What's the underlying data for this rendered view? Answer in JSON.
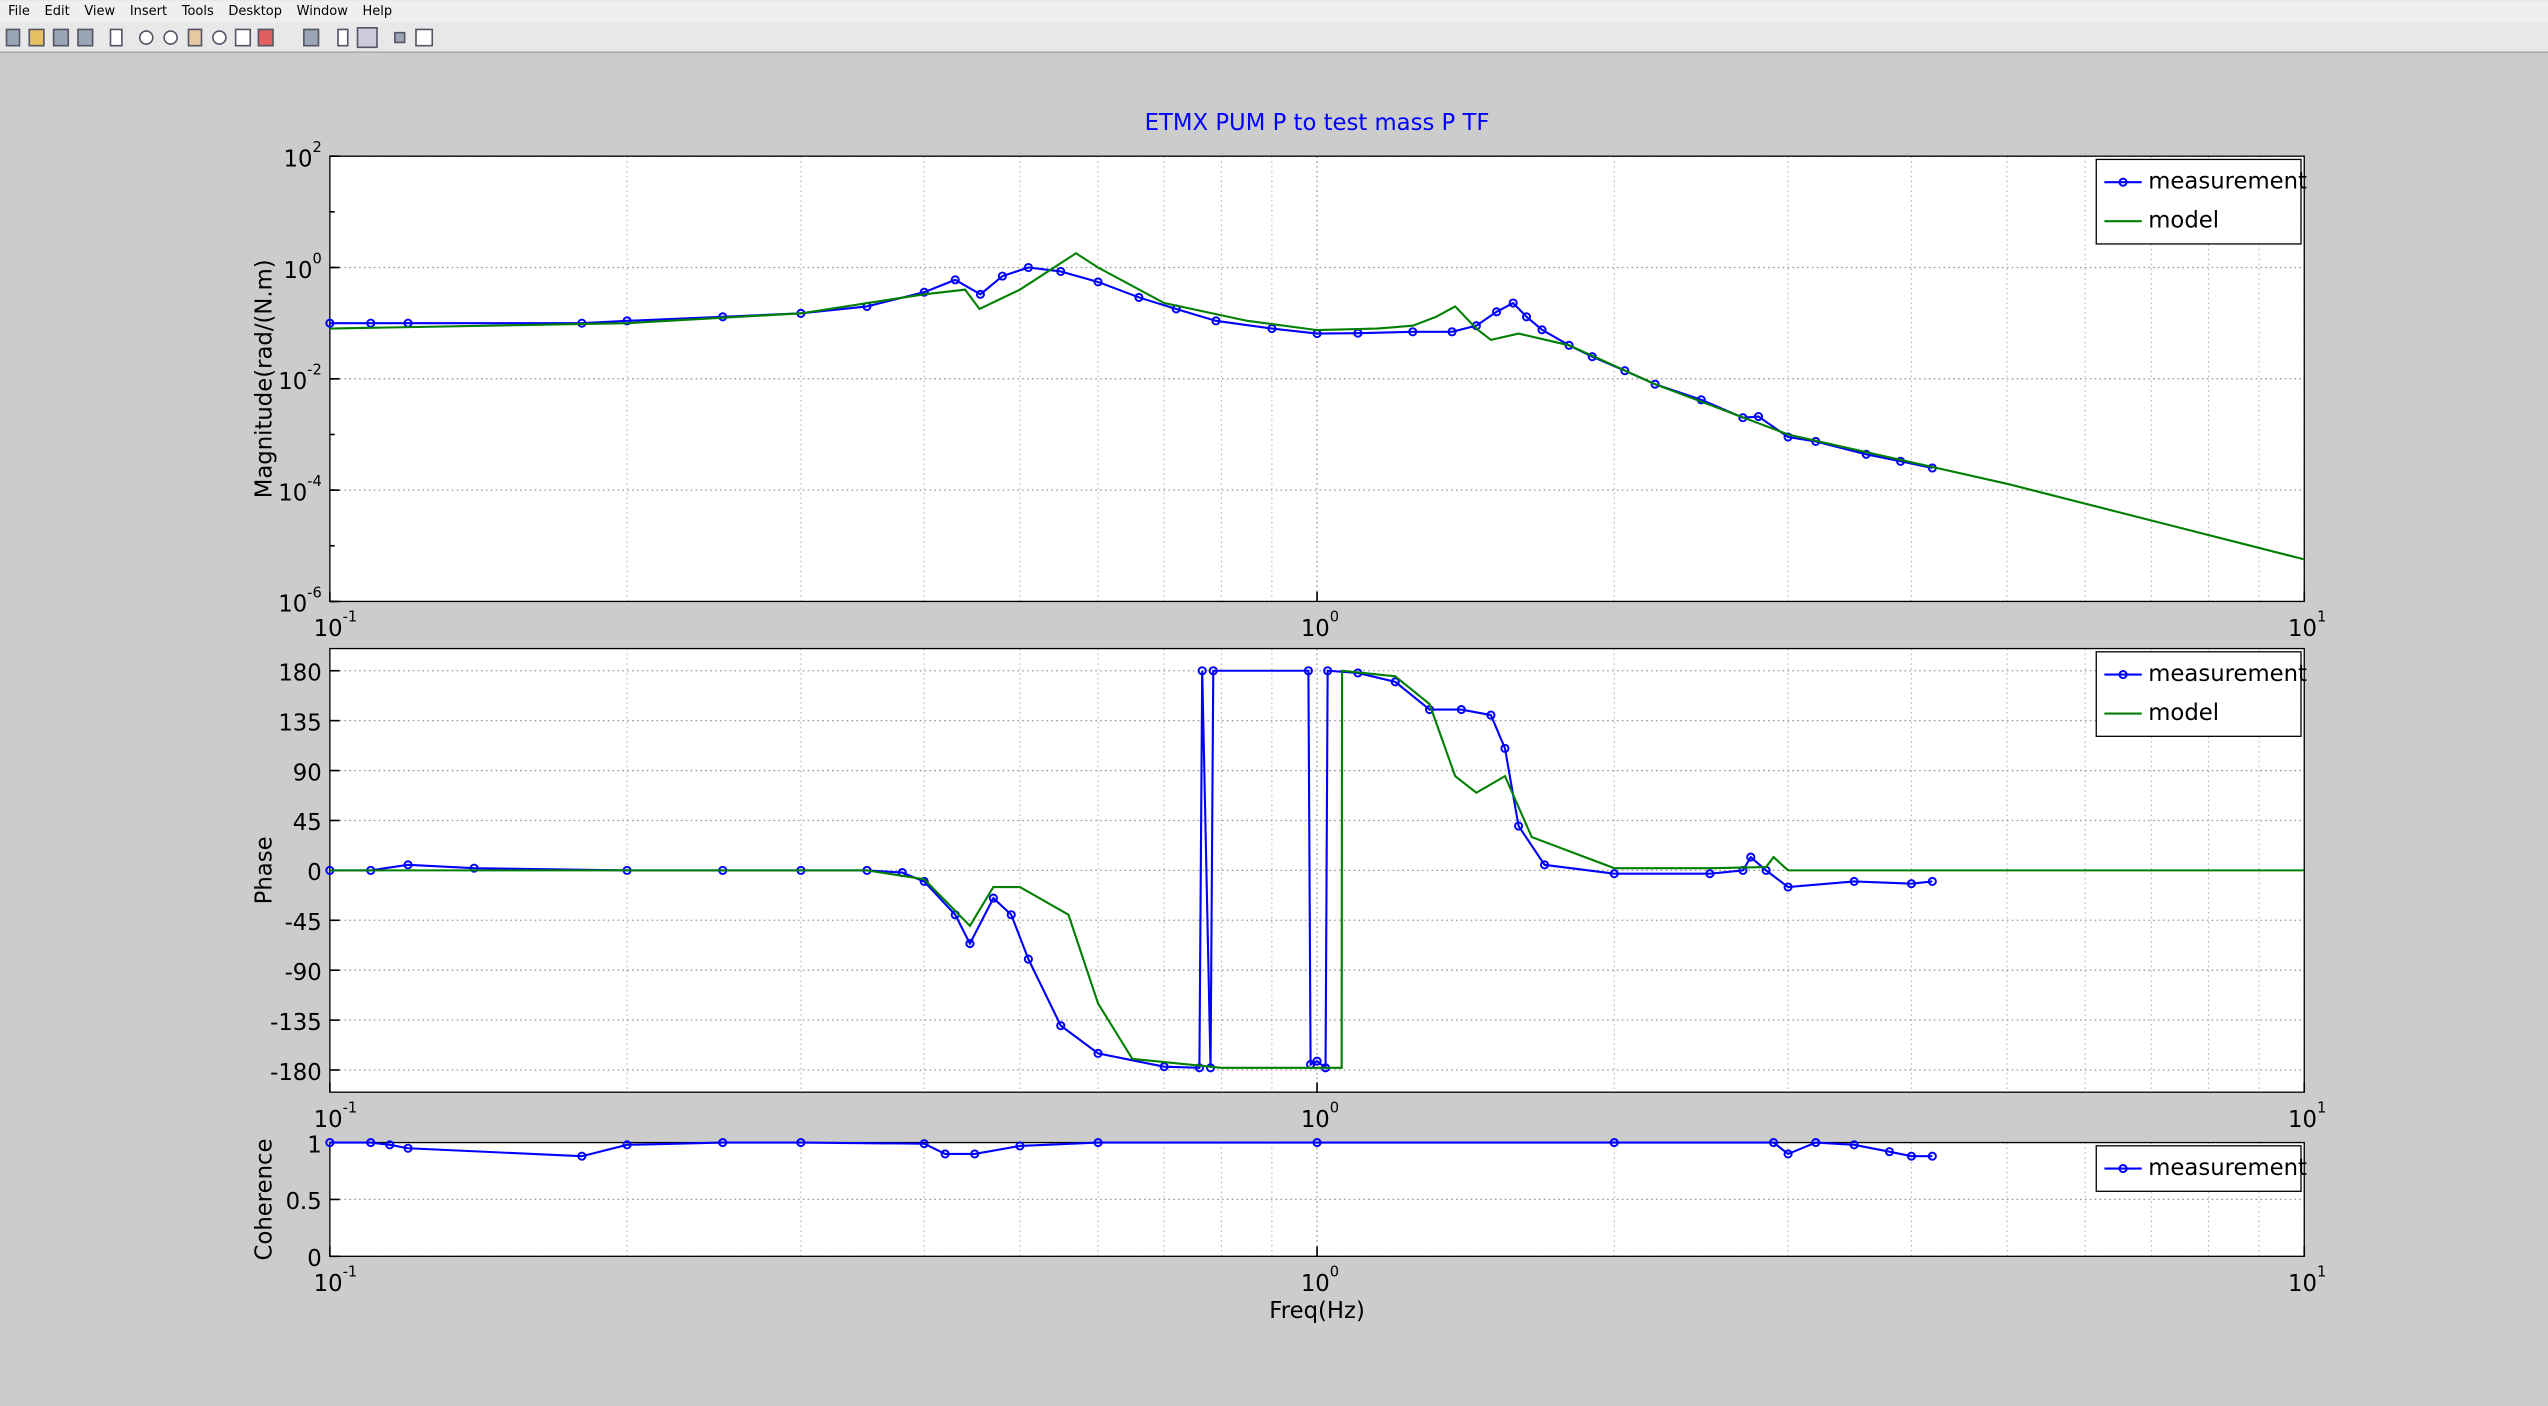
{
  "menu": [
    "File",
    "Edit",
    "View",
    "Insert",
    "Tools",
    "Desktop",
    "Window",
    "Help"
  ],
  "chart_data": [
    {
      "type": "line",
      "title": "ETMX PUM P to test mass P TF",
      "ylabel": "Magnitude(rad/(N.m)",
      "xlog": true,
      "ylog": true,
      "grid": true,
      "legend": "upper right",
      "xlim": [
        0.1,
        10
      ],
      "ylim": [
        1e-06,
        100
      ],
      "xticks": [
        {
          "value": 0.1,
          "label": "10",
          "exponent": "-1"
        },
        {
          "value": 1,
          "label": "10",
          "exponent": "0"
        },
        {
          "value": 10,
          "label": "10",
          "exponent": "1"
        }
      ],
      "yticks": [
        {
          "value": 1e-06,
          "label": "10",
          "exponent": "-6"
        },
        {
          "value": 0.0001,
          "label": "10",
          "exponent": "-4"
        },
        {
          "value": 0.01,
          "label": "10",
          "exponent": "-2"
        },
        {
          "value": 1,
          "label": "10",
          "exponent": "0"
        },
        {
          "value": 100,
          "label": "10",
          "exponent": "2"
        }
      ],
      "series": [
        {
          "name": "measurement",
          "color": "#0000ff",
          "marker": "o",
          "x": [
            0.1,
            0.11,
            0.12,
            0.18,
            0.2,
            0.25,
            0.3,
            0.35,
            0.4,
            0.43,
            0.456,
            0.48,
            0.51,
            0.55,
            0.6,
            0.66,
            0.72,
            0.79,
            0.9,
            1.0,
            1.1,
            1.25,
            1.37,
            1.45,
            1.52,
            1.58,
            1.63,
            1.69,
            1.8,
            1.9,
            2.05,
            2.2,
            2.45,
            2.7,
            2.8,
            3.0,
            3.2,
            3.6,
            3.9,
            4.2
          ],
          "values": [
            0.1,
            0.1,
            0.1,
            0.1,
            0.11,
            0.13,
            0.15,
            0.2,
            0.36,
            0.6,
            0.33,
            0.7,
            1.0,
            0.85,
            0.55,
            0.29,
            0.18,
            0.11,
            0.08,
            0.065,
            0.066,
            0.07,
            0.07,
            0.09,
            0.16,
            0.23,
            0.13,
            0.076,
            0.04,
            0.025,
            0.014,
            0.008,
            0.0042,
            0.002,
            0.0021,
            0.0009,
            0.00075,
            0.00044,
            0.00033,
            0.00025
          ]
        },
        {
          "name": "model",
          "color": "#007f00",
          "x": [
            0.1,
            0.2,
            0.3,
            0.4,
            0.44,
            0.455,
            0.5,
            0.55,
            0.57,
            0.6,
            0.7,
            0.85,
            1.0,
            1.15,
            1.25,
            1.32,
            1.38,
            1.45,
            1.5,
            1.6,
            1.8,
            2.2,
            3.0,
            5.0,
            10
          ],
          "values": [
            0.08,
            0.1,
            0.15,
            0.33,
            0.4,
            0.18,
            0.4,
            1.2,
            1.8,
            1.0,
            0.23,
            0.11,
            0.075,
            0.08,
            0.09,
            0.13,
            0.2,
            0.08,
            0.05,
            0.065,
            0.04,
            0.008,
            0.001,
            0.00013,
            5.7e-06
          ]
        }
      ]
    },
    {
      "type": "line",
      "ylabel": "Phase",
      "xlog": true,
      "grid": true,
      "legend": "upper right",
      "xlim": [
        0.1,
        10
      ],
      "ylim": [
        -200,
        200
      ],
      "xticks": [
        {
          "value": 0.1,
          "label": "10",
          "exponent": "-1"
        },
        {
          "value": 1,
          "label": "10",
          "exponent": "0"
        },
        {
          "value": 10,
          "label": "10",
          "exponent": "1"
        }
      ],
      "yticks": [
        -180,
        -135,
        -90,
        -45,
        0,
        45,
        90,
        135,
        180
      ],
      "series": [
        {
          "name": "measurement",
          "color": "#0000ff",
          "marker": "o",
          "x": [
            0.1,
            0.11,
            0.12,
            0.14,
            0.2,
            0.25,
            0.3,
            0.35,
            0.38,
            0.4,
            0.43,
            0.445,
            0.47,
            0.49,
            0.51,
            0.55,
            0.6,
            0.7,
            0.76,
            0.765,
            0.78,
            0.785,
            0.98,
            0.985,
            1.0,
            1.02,
            1.025,
            1.1,
            1.2,
            1.3,
            1.4,
            1.5,
            1.55,
            1.6,
            1.7,
            2.0,
            2.5,
            2.7,
            2.75,
            2.85,
            3.0,
            3.5,
            4.0,
            4.2
          ],
          "values": [
            0,
            0,
            5,
            2,
            0,
            0,
            0,
            0,
            -2,
            -10,
            -40,
            -66,
            -25,
            -40,
            -80,
            -140,
            -165,
            -177,
            -178,
            180,
            -178,
            180,
            180,
            -175,
            -172,
            -178,
            180,
            178,
            170,
            145,
            145,
            140,
            110,
            40,
            5,
            -3,
            -3,
            0,
            12,
            0,
            -15,
            -10,
            -12,
            -10
          ]
        },
        {
          "name": "model",
          "color": "#007f00",
          "x": [
            0.1,
            0.35,
            0.4,
            0.445,
            0.47,
            0.5,
            0.56,
            0.6,
            0.65,
            0.8,
            1.0,
            1.059,
            1.06,
            1.2,
            1.3,
            1.38,
            1.45,
            1.55,
            1.65,
            2.0,
            2.5,
            2.85,
            2.9,
            3.0,
            10
          ],
          "values": [
            0,
            0,
            -8,
            -50,
            -15,
            -15,
            -40,
            -120,
            -170,
            -178,
            -178,
            -178,
            180,
            175,
            150,
            85,
            70,
            85,
            30,
            2,
            2,
            3,
            12,
            0,
            0
          ]
        }
      ]
    },
    {
      "type": "line",
      "ylabel": "Coherence",
      "xlabel": "Freq(Hz)",
      "xlog": true,
      "grid": true,
      "legend": "upper right",
      "xlim": [
        0.1,
        10
      ],
      "ylim": [
        0,
        1
      ],
      "xticks": [
        {
          "value": 0.1,
          "label": "10",
          "exponent": "-1"
        },
        {
          "value": 1,
          "label": "10",
          "exponent": "0"
        },
        {
          "value": 10,
          "label": "10",
          "exponent": "1"
        }
      ],
      "yticks": [
        0,
        0.5,
        1
      ],
      "series": [
        {
          "name": "measurement",
          "color": "#0000ff",
          "marker": "o",
          "x": [
            0.1,
            0.11,
            0.115,
            0.12,
            0.18,
            0.2,
            0.25,
            0.3,
            0.4,
            0.42,
            0.45,
            0.5,
            0.6,
            1.0,
            2.0,
            2.9,
            3.0,
            3.2,
            3.5,
            3.8,
            4.0,
            4.2
          ],
          "values": [
            1,
            1,
            0.98,
            0.95,
            0.88,
            0.98,
            1,
            1,
            0.99,
            0.9,
            0.9,
            0.97,
            1,
            1,
            1,
            1,
            0.9,
            1,
            0.98,
            0.92,
            0.88,
            0.88
          ]
        }
      ]
    }
  ]
}
